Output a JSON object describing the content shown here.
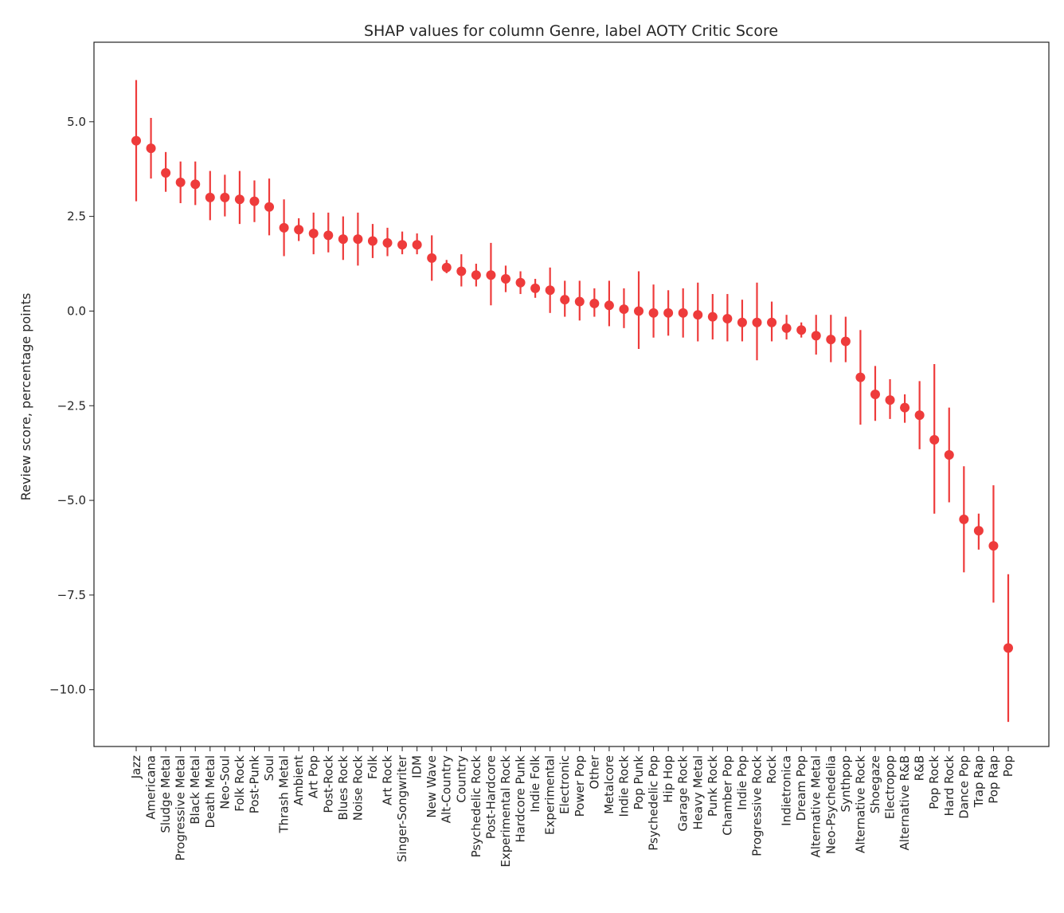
{
  "chart_data": {
    "type": "scatter",
    "title": "SHAP values for column Genre, label AOTY Critic Score",
    "xlabel": "",
    "ylabel": "Review score, percentage points",
    "ylim": [
      -11.5,
      7.1
    ],
    "yticks": [
      "5.0",
      "2.5",
      "0.0",
      "−2.5",
      "−5.0",
      "−7.5",
      "−10.0"
    ],
    "ytick_values": [
      5.0,
      2.5,
      0.0,
      -2.5,
      -5.0,
      -7.5,
      -10.0
    ],
    "grid": false,
    "legend": "none",
    "series_color": "#ee3b3b",
    "categories": [
      "Jazz",
      "Americana",
      "Sludge Metal",
      "Progressive Metal",
      "Black Metal",
      "Death Metal",
      "Neo-Soul",
      "Folk Rock",
      "Post-Punk",
      "Soul",
      "Thrash Metal",
      "Ambient",
      "Art Pop",
      "Post-Rock",
      "Blues Rock",
      "Noise Rock",
      "Folk",
      "Art Rock",
      "Singer-Songwriter",
      "IDM",
      "New Wave",
      "Alt-Country",
      "Country",
      "Psychedelic Rock",
      "Post-Hardcore",
      "Experimental Rock",
      "Hardcore Punk",
      "Indie Folk",
      "Experimental",
      "Electronic",
      "Power Pop",
      "Other",
      "Metalcore",
      "Indie Rock",
      "Pop Punk",
      "Psychedelic Pop",
      "Hip Hop",
      "Garage Rock",
      "Heavy Metal",
      "Punk Rock",
      "Chamber Pop",
      "Indie Pop",
      "Progressive Rock",
      "Rock",
      "Indietronica",
      "Dream Pop",
      "Alternative Metal",
      "Neo-Psychedelia",
      "Synthpop",
      "Alternative Rock",
      "Shoegaze",
      "Electropop",
      "Alternative R&B",
      "R&B",
      "Pop Rock",
      "Hard Rock",
      "Dance Pop",
      "Trap Rap",
      "Pop Rap",
      "Pop"
    ],
    "values": [
      4.5,
      4.3,
      3.65,
      3.4,
      3.35,
      3.0,
      3.0,
      2.95,
      2.9,
      2.75,
      2.2,
      2.15,
      2.05,
      2.0,
      1.9,
      1.9,
      1.85,
      1.8,
      1.75,
      1.75,
      1.4,
      1.15,
      1.05,
      0.95,
      0.95,
      0.85,
      0.75,
      0.6,
      0.55,
      0.3,
      0.25,
      0.2,
      0.15,
      0.05,
      0.0,
      -0.05,
      -0.05,
      -0.05,
      -0.1,
      -0.15,
      -0.2,
      -0.3,
      -0.3,
      -0.3,
      -0.45,
      -0.5,
      -0.65,
      -0.75,
      -0.8,
      -1.75,
      -2.2,
      -2.35,
      -2.55,
      -2.75,
      -3.4,
      -3.8,
      -5.5,
      -5.8,
      -6.2,
      -8.9
    ],
    "err_low": [
      2.9,
      3.5,
      3.15,
      2.85,
      2.8,
      2.4,
      2.5,
      2.3,
      2.35,
      2.0,
      1.45,
      1.85,
      1.5,
      1.55,
      1.35,
      1.2,
      1.4,
      1.45,
      1.5,
      1.5,
      0.8,
      1.0,
      0.65,
      0.65,
      0.15,
      0.5,
      0.45,
      0.35,
      -0.05,
      -0.15,
      -0.25,
      -0.15,
      -0.4,
      -0.45,
      -1.0,
      -0.7,
      -0.65,
      -0.7,
      -0.8,
      -0.75,
      -0.8,
      -0.8,
      -1.3,
      -0.8,
      -0.75,
      -0.7,
      -1.15,
      -1.35,
      -1.35,
      -3.0,
      -2.9,
      -2.85,
      -2.95,
      -3.65,
      -5.35,
      -5.05,
      -6.9,
      -6.3,
      -7.7,
      -10.85
    ],
    "err_high": [
      6.1,
      5.1,
      4.2,
      3.95,
      3.95,
      3.7,
      3.6,
      3.7,
      3.45,
      3.5,
      2.95,
      2.45,
      2.6,
      2.6,
      2.5,
      2.6,
      2.3,
      2.2,
      2.1,
      2.05,
      2.0,
      1.35,
      1.5,
      1.25,
      1.8,
      1.2,
      1.05,
      0.85,
      1.15,
      0.8,
      0.8,
      0.6,
      0.8,
      0.6,
      1.05,
      0.7,
      0.55,
      0.6,
      0.75,
      0.45,
      0.45,
      0.3,
      0.75,
      0.25,
      -0.1,
      -0.3,
      -0.1,
      -0.1,
      -0.15,
      -0.5,
      -1.45,
      -1.8,
      -2.2,
      -1.85,
      -1.4,
      -2.55,
      -4.1,
      -5.35,
      -4.6,
      -6.95
    ]
  }
}
